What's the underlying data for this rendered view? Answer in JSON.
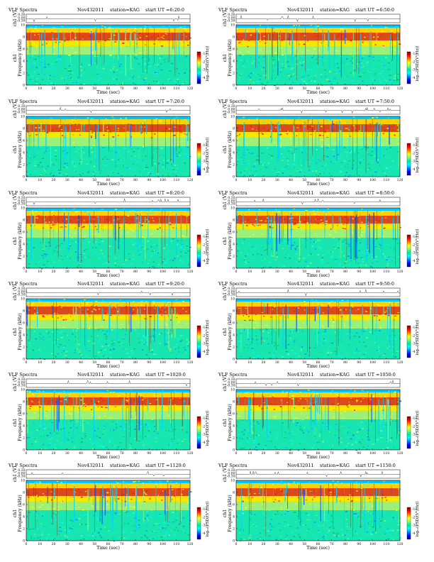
{
  "page": {
    "background": "#ffffff"
  },
  "labels": {
    "header_left": "VLF Spectra",
    "date": "Nov432011",
    "station": "station=KAG",
    "start_prefix": "start UT =",
    "ch1_label": "ch1 (V)",
    "freq_label_ch": "ch1",
    "freq_label_main": "Frequency (kHz)",
    "time_label": "Time (sec)",
    "colorbar_label": "log₁₀(PSD/(V²/Hz))"
  },
  "axes": {
    "time_ticks": [
      0,
      10,
      20,
      30,
      40,
      50,
      60,
      70,
      80,
      90,
      100,
      110,
      120
    ],
    "freq_ticks": [
      0,
      2,
      4,
      6,
      8,
      10
    ],
    "ch1_ticks": [
      "0.30",
      "0.00",
      "-0.30"
    ],
    "colorbar_ticks": [
      "-1",
      "-2",
      "-3",
      "-4"
    ]
  },
  "colormap": [
    "#00007f",
    "#0000ff",
    "#0080ff",
    "#00ffff",
    "#00e69a",
    "#7fff7f",
    "#ffff00",
    "#ff8000",
    "#ff0000",
    "#7f0000"
  ],
  "panels": [
    {
      "start_ut": "6:20:0"
    },
    {
      "start_ut": "6:50:0"
    },
    {
      "start_ut": "7:20:0"
    },
    {
      "start_ut": "7:50:0"
    },
    {
      "start_ut": "8:20:0"
    },
    {
      "start_ut": "8:50:0"
    },
    {
      "start_ut": "9:20:0"
    },
    {
      "start_ut": "9:50:0"
    },
    {
      "start_ut": "1020:0"
    },
    {
      "start_ut": "1050:0"
    },
    {
      "start_ut": "1120:0"
    },
    {
      "start_ut": "1150:0"
    }
  ],
  "chart_data": {
    "type": "heatmap",
    "title": "VLF Spectra",
    "panel_count": 12,
    "grid": "6 rows x 2 columns",
    "x": {
      "label": "Time (sec)",
      "range": [
        0,
        120
      ]
    },
    "y": {
      "label": "Frequency (kHz)",
      "range": [
        0,
        10
      ]
    },
    "trace": {
      "label": "ch1 (V)",
      "range": [
        -0.3,
        0.3
      ]
    },
    "colorbar": {
      "label": "log10(PSD/(V^2/Hz))",
      "ticks": [
        -1,
        -2,
        -3,
        -4
      ]
    },
    "station": "KAG",
    "date": "Nov432011",
    "start_times_ut": [
      "6:20:0",
      "6:50:0",
      "7:20:0",
      "7:50:0",
      "8:20:0",
      "8:50:0",
      "9:20:0",
      "9:50:0",
      "1020:0",
      "1050:0",
      "1120:0",
      "1150:0"
    ]
  }
}
